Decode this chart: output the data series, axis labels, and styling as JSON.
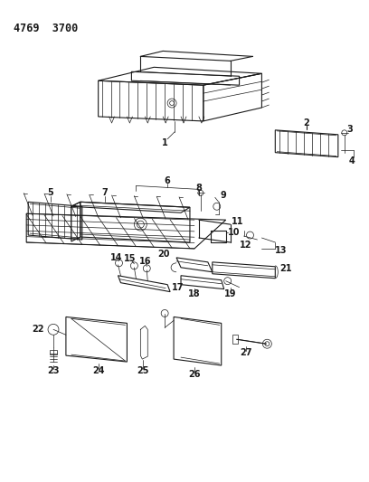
{
  "title": "4769  3700",
  "bg_color": "#ffffff",
  "line_color": "#1a1a1a",
  "title_fontsize": 8.5,
  "label_fontsize": 7,
  "fig_width": 4.08,
  "fig_height": 5.33,
  "dpi": 100
}
